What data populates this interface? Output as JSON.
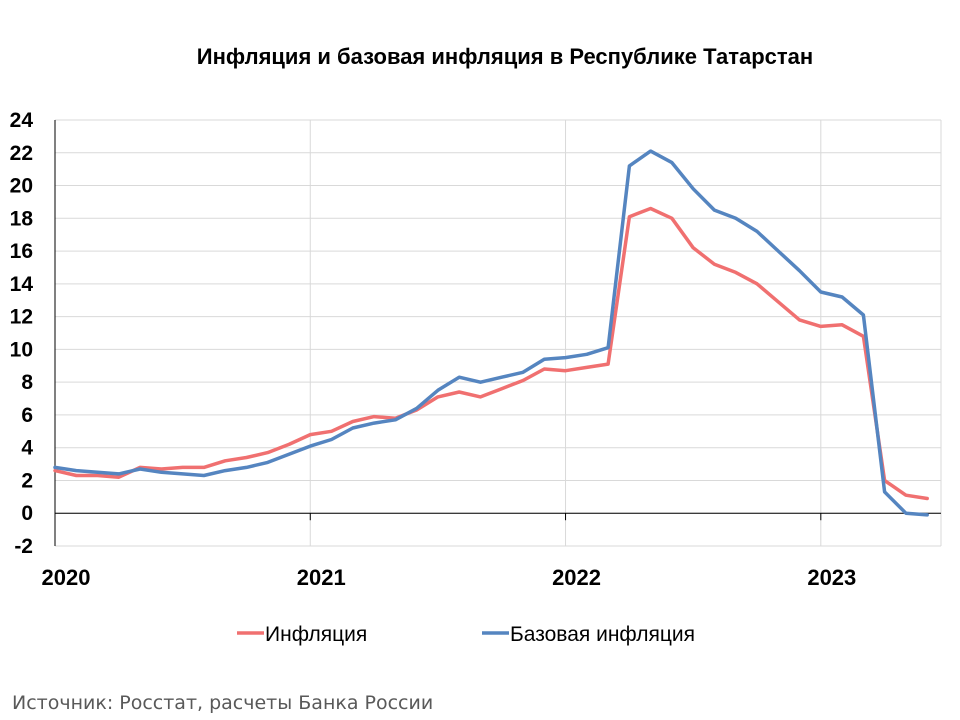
{
  "title": "Инфляция и базовая инфляция в Республике Татарстан",
  "source": "Источник: Росстат, расчеты Банка России",
  "colors": {
    "inflation": "#F07070",
    "core": "#5585C0",
    "grid": "#D9D9D9",
    "axis": "#000000"
  },
  "chart_data": {
    "type": "line",
    "title": "Инфляция и базовая инфляция в Республике Татарстан",
    "xlabel": "",
    "ylabel": "",
    "ylim": [
      -2,
      24
    ],
    "yticks": [
      -2,
      0,
      2,
      4,
      6,
      8,
      10,
      12,
      14,
      16,
      18,
      20,
      22,
      24
    ],
    "xtick_labels": [
      "2020",
      "2021",
      "2022",
      "2023"
    ],
    "grid": true,
    "legend_position": "bottom",
    "x": [
      "2020-01",
      "2020-02",
      "2020-03",
      "2020-04",
      "2020-05",
      "2020-06",
      "2020-07",
      "2020-08",
      "2020-09",
      "2020-10",
      "2020-11",
      "2020-12",
      "2021-01",
      "2021-02",
      "2021-03",
      "2021-04",
      "2021-05",
      "2021-06",
      "2021-07",
      "2021-08",
      "2021-09",
      "2021-10",
      "2021-11",
      "2021-12",
      "2022-01",
      "2022-02",
      "2022-03",
      "2022-04",
      "2022-05",
      "2022-06",
      "2022-07",
      "2022-08",
      "2022-09",
      "2022-10",
      "2022-11",
      "2022-12",
      "2023-01",
      "2023-02",
      "2023-03",
      "2023-04",
      "2023-05",
      "2023-06"
    ],
    "series": [
      {
        "name": "Инфляция",
        "values": [
          2.6,
          2.3,
          2.3,
          2.2,
          2.8,
          2.7,
          2.8,
          2.8,
          3.2,
          3.4,
          3.7,
          4.2,
          4.8,
          5.0,
          5.6,
          5.9,
          5.8,
          6.3,
          7.1,
          7.4,
          7.1,
          7.6,
          8.1,
          8.8,
          8.7,
          8.9,
          9.1,
          18.1,
          18.6,
          18.0,
          16.2,
          15.2,
          14.7,
          14.0,
          12.9,
          11.8,
          11.4,
          11.5,
          10.8,
          2.0,
          1.1,
          0.9
        ]
      },
      {
        "name": "Базовая инфляция",
        "values": [
          2.8,
          2.6,
          2.5,
          2.4,
          2.7,
          2.5,
          2.4,
          2.3,
          2.6,
          2.8,
          3.1,
          3.6,
          4.1,
          4.5,
          5.2,
          5.5,
          5.7,
          6.4,
          7.5,
          8.3,
          8.0,
          8.3,
          8.6,
          9.4,
          9.5,
          9.7,
          10.1,
          21.2,
          22.1,
          21.4,
          19.8,
          18.5,
          18.0,
          17.2,
          16.0,
          14.8,
          13.5,
          13.2,
          12.1,
          1.3,
          0.0,
          -0.1
        ]
      }
    ]
  }
}
